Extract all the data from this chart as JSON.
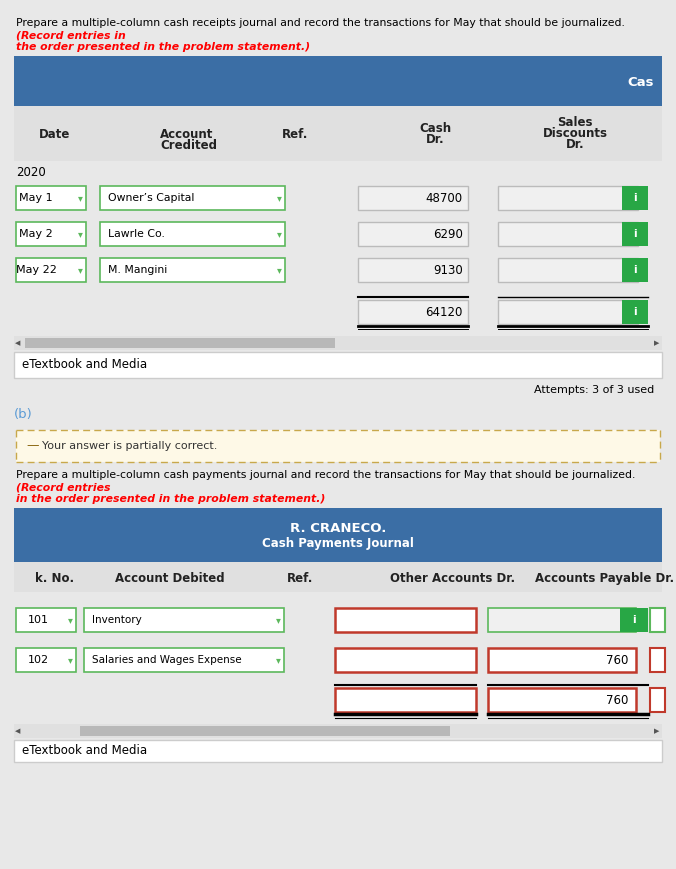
{
  "page_bg": "#e8e8e8",
  "section_a": {
    "instruction_normal": "Prepare a multiple-column cash receipts journal and record the transactions for May that should be journalized. ",
    "instruction_red1": "(Record entries in",
    "instruction_red2": "the order presented in the problem statement.)",
    "header_bg": "#3b6ea5",
    "header_text": "Cas",
    "col_headers_texts": [
      "Date",
      "Account\nCredited",
      "Ref.",
      "Cash\nDr.",
      "Sales\nDiscounts\nDr."
    ],
    "year": "2020",
    "rows": [
      {
        "date": "May 1",
        "account": "Owner’s Capital",
        "cash": "48700",
        "disc": ""
      },
      {
        "date": "May 2",
        "account": "Lawrle Co.",
        "cash": "6290",
        "disc": ""
      },
      {
        "date": "May 22",
        "account": "M. Mangini",
        "cash": "9130",
        "disc": ""
      },
      {
        "date": "",
        "account": "",
        "cash": "64120",
        "disc": ""
      }
    ],
    "etextbook": "eTextbook and Media",
    "attempts": "Attempts: 3 of 3 used",
    "green_btn": "#28a745",
    "green_border": "#5cb85c",
    "input_bg": "#f0f0f0",
    "col_hdr_bg": "#e0e0e0",
    "card_bg": "#ffffff"
  },
  "section_b_label": "(b)",
  "section_b": {
    "warning_bg": "#fef9e7",
    "warning_border": "#c8a84b",
    "warning_dash_color": "#8B6914",
    "warning_text": "Your answer is partially correct.",
    "instruction_normal": "Prepare a multiple-column cash payments journal and record the transactions for May that should be journalized. ",
    "instruction_red1": "(Record entries",
    "instruction_red2": "in the order presented in the problem statement.)",
    "header_bg": "#3b6ea5",
    "title1": "R. CRANECO.",
    "title2": "Cash Payments Journal",
    "col_headers_texts": [
      "k. No.",
      "Account Debited",
      "Ref.",
      "Other Accounts Dr.",
      "Accounts Payable Dr."
    ],
    "rows": [
      {
        "chk": "101",
        "account": "Inventory",
        "other": "",
        "payable": "",
        "payable_green": true
      },
      {
        "chk": "102",
        "account": "Salaries and Wages Expense",
        "other": "",
        "payable": "760",
        "payable_green": false
      },
      {
        "chk": "",
        "account": "",
        "other": "",
        "payable": "760",
        "payable_green": false,
        "is_total": true
      }
    ],
    "green_btn": "#28a745",
    "green_border": "#5cb85c",
    "red_border": "#c0392b",
    "input_bg": "#f0f0f0",
    "col_hdr_bg": "#e0e0e0",
    "card_bg": "#ffffff",
    "etextbook": "eTextbook and Media"
  }
}
